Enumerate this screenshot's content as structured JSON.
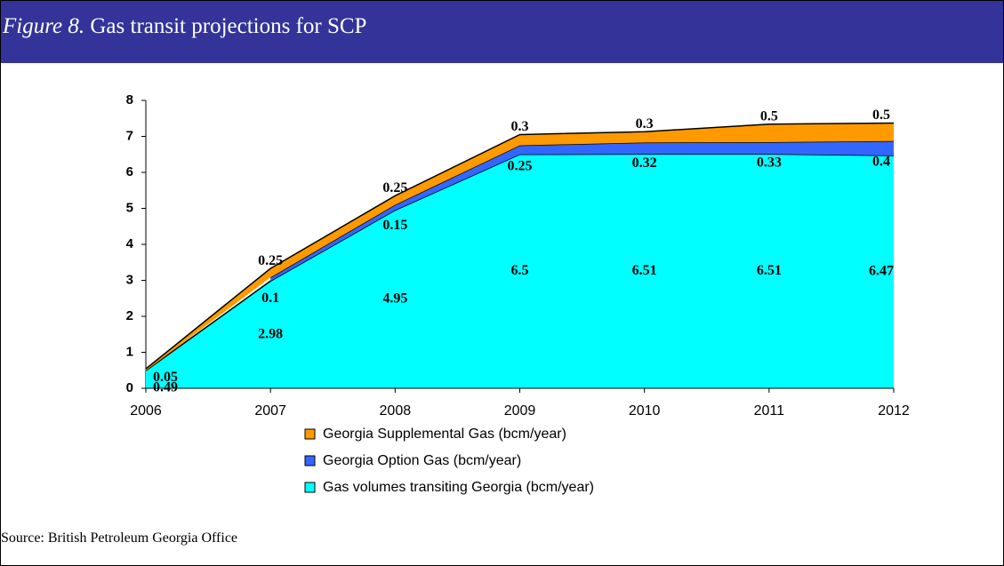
{
  "figure_label": "Figure 8.",
  "title": "Gas transit projections for SCP",
  "source": "Source: British Petroleum Georgia Office",
  "chart_data": {
    "type": "stacked_area",
    "categories": [
      "2006",
      "2007",
      "2008",
      "2009",
      "2010",
      "2011",
      "2012"
    ],
    "series": [
      {
        "name": "Gas volumes transiting Georgia (bcm/year)",
        "color": "#00ffff",
        "values": [
          0.49,
          2.98,
          4.95,
          6.5,
          6.51,
          6.51,
          6.47
        ]
      },
      {
        "name": "Georgia Option Gas (bcm/year)",
        "color": "#3366ff",
        "values": [
          null,
          0.1,
          0.15,
          0.25,
          0.32,
          0.33,
          0.4
        ]
      },
      {
        "name": "Georgia Supplemental Gas (bcm/year)",
        "color": "#ff9900",
        "values": [
          0.05,
          0.25,
          0.25,
          0.3,
          0.3,
          0.5,
          0.5
        ]
      }
    ],
    "ylim": [
      0,
      8
    ],
    "yticks": [
      0,
      1,
      2,
      3,
      4,
      5,
      6,
      7,
      8
    ],
    "legend": "bottom"
  }
}
